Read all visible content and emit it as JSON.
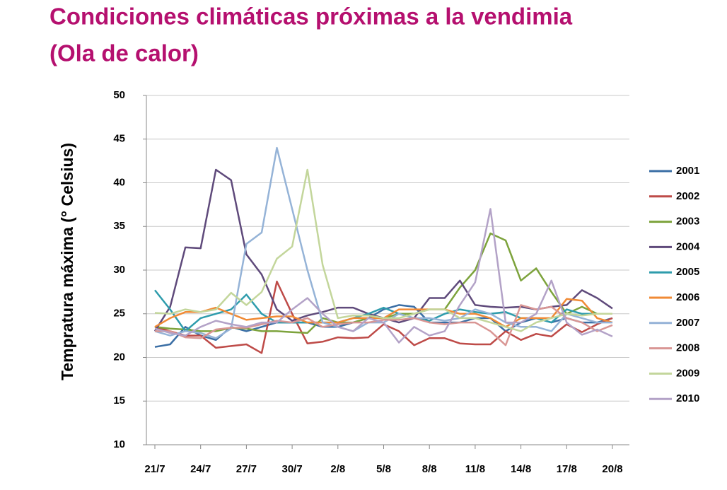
{
  "chart_data": {
    "type": "line",
    "title": "Condiciones climáticas próximas a la vendimia",
    "subtitle": "(Ola de calor)",
    "y_label": "Tempratura máxima (° Celsius)",
    "categories": [
      "21/7",
      null,
      null,
      "24/7",
      null,
      null,
      "27/7",
      null,
      null,
      "30/7",
      null,
      null,
      "2/8",
      null,
      null,
      "5/8",
      null,
      null,
      "8/8",
      null,
      null,
      "11/8",
      null,
      null,
      "14/8",
      null,
      null,
      "17/8",
      null,
      null,
      "20/8"
    ],
    "ylim": [
      10,
      50
    ],
    "yticks": [
      10,
      15,
      20,
      25,
      30,
      35,
      40,
      45,
      50
    ],
    "grid": true,
    "legend": "right",
    "series": [
      {
        "name": "2001",
        "color": "#3a6ea5",
        "values": [
          21.2,
          21.5,
          23.5,
          22.5,
          22,
          23.5,
          23,
          23.5,
          24,
          24,
          24,
          23.5,
          23.5,
          24,
          24.5,
          25.5,
          26,
          25.8,
          24,
          24,
          24,
          24.5,
          24.5,
          23,
          24,
          24.5,
          24,
          24.5,
          24,
          24,
          24.5
        ]
      },
      {
        "name": "2002",
        "color": "#be4b48",
        "values": [
          23.5,
          23,
          22.5,
          22.5,
          21.1,
          21.3,
          21.5,
          20.5,
          28.7,
          25,
          21.6,
          21.8,
          22.3,
          22.2,
          22.3,
          23.8,
          23,
          21.4,
          22.2,
          22.2,
          21.6,
          21.5,
          21.5,
          23,
          22,
          22.7,
          22.4,
          23.8,
          22.9,
          23.8,
          24.5
        ]
      },
      {
        "name": "2003",
        "color": "#7da33c",
        "values": [
          23.5,
          23.3,
          23.2,
          23,
          23,
          23.4,
          23.3,
          23,
          23,
          22.9,
          22.8,
          24.5,
          24,
          24,
          24.5,
          24.5,
          25,
          25,
          25.5,
          25.5,
          28,
          30,
          34.2,
          33.4,
          28.8,
          30.2,
          27.5,
          25,
          25.8,
          25,
          25
        ]
      },
      {
        "name": "2004",
        "color": "#5f4a7b",
        "values": [
          23,
          25.8,
          32.6,
          32.5,
          41.5,
          40.3,
          31.8,
          29.5,
          25.5,
          24.2,
          24.8,
          25.2,
          25.7,
          25.7,
          25,
          24.5,
          24,
          24.5,
          26.8,
          26.8,
          28.8,
          26,
          25.8,
          25.7,
          25.8,
          25.5,
          25.8,
          26,
          27.7,
          26.8,
          25.6
        ]
      },
      {
        "name": "2005",
        "color": "#2e9cac",
        "values": [
          27.7,
          25.5,
          23,
          24.5,
          25,
          25.5,
          27.2,
          25,
          24,
          24,
          24,
          24,
          24,
          24.5,
          25,
          25.7,
          25,
          24.5,
          24.2,
          25,
          25.5,
          25.2,
          25,
          25.2,
          24.5,
          24.5,
          24,
          25.5,
          25,
          25,
          25
        ]
      },
      {
        "name": "2006",
        "color": "#f08a35",
        "values": [
          23.5,
          24.5,
          25.2,
          25.2,
          25.7,
          25,
          24.3,
          24.5,
          24.7,
          24.7,
          24,
          24,
          24,
          24.5,
          24.5,
          24.5,
          25.5,
          25.5,
          25.5,
          25.5,
          25,
          25,
          24.5,
          23.5,
          24.5,
          24.5,
          24.5,
          26.7,
          26.5,
          24.5,
          24
        ]
      },
      {
        "name": "2007",
        "color": "#95b3d7",
        "values": [
          23,
          22.5,
          23,
          22.8,
          22.2,
          23.3,
          33,
          34.3,
          44,
          37,
          30,
          24,
          23.5,
          23,
          24,
          24,
          25,
          24.5,
          24.5,
          24.2,
          24.5,
          25.5,
          25,
          24,
          23.5,
          23.5,
          23,
          25,
          24.5,
          24,
          24
        ]
      },
      {
        "name": "2008",
        "color": "#d99694",
        "values": [
          23,
          23,
          22.3,
          22.2,
          23.2,
          23.4,
          23.4,
          23.8,
          24.2,
          24,
          24.5,
          23.5,
          23.8,
          24,
          24,
          24.3,
          24.3,
          24.5,
          24,
          23.8,
          24,
          24,
          23,
          21.4,
          26,
          25.5,
          25.8,
          24.5,
          24,
          23,
          23.7
        ]
      },
      {
        "name": "2009",
        "color": "#c3d69b",
        "values": [
          25.1,
          25,
          25.5,
          25.2,
          25.5,
          27.4,
          26,
          27.5,
          31.3,
          32.7,
          41.5,
          30.6,
          24.5,
          24.8,
          24.8,
          24.5,
          24.5,
          25,
          25.5,
          25.5,
          24.5,
          24.5,
          24,
          23.5,
          23,
          24,
          24.5,
          25,
          24.8,
          25,
          25
        ]
      },
      {
        "name": "2010",
        "color": "#b3a2c7",
        "values": [
          23.3,
          22.8,
          22.5,
          23.5,
          24.2,
          23.8,
          23.5,
          24,
          24,
          25.5,
          26.8,
          25,
          23.5,
          23,
          24.5,
          24,
          21.7,
          23.5,
          22.5,
          23,
          26,
          28.6,
          37,
          24,
          24,
          25,
          28.8,
          24,
          22.6,
          23.2,
          22.4
        ]
      }
    ]
  }
}
